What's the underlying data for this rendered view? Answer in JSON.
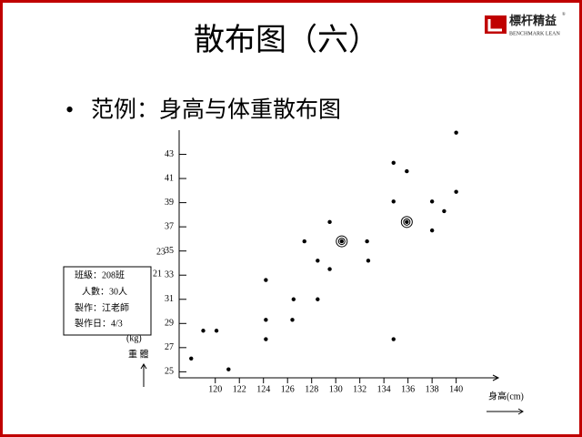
{
  "header": {
    "title": "散布图（六）",
    "logo_name": "標杆精益",
    "logo_subtitle": "BENCHMARK LEAN",
    "logo_mark": "®"
  },
  "bullet": "范例：身高与体重散布图",
  "info_box": [
    "班級：208班",
    "人數：30人",
    "製作：江老師",
    "製作日：4/3"
  ],
  "chart_data": {
    "type": "scatter",
    "x": [
      118.0,
      119.0,
      120.1,
      121.1,
      124.2,
      124.2,
      124.2,
      126.4,
      126.5,
      127.4,
      128.5,
      128.5,
      129.5,
      129.5,
      130.5,
      132.6,
      132.7,
      134.8,
      134.8,
      134.8,
      135.9,
      135.9,
      138.0,
      138.0,
      139.0,
      140.0,
      140.0
    ],
    "y": [
      26.1,
      28.4,
      28.4,
      25.2,
      32.6,
      29.3,
      27.7,
      29.3,
      31.0,
      35.8,
      34.2,
      31.0,
      33.5,
      37.4,
      35.8,
      35.8,
      34.2,
      42.3,
      39.1,
      27.7,
      41.6,
      37.4,
      39.1,
      36.7,
      38.3,
      44.8,
      39.9
    ],
    "highlighted_points": [
      14,
      21
    ],
    "color": "#000000",
    "xlim": [
      117,
      143.5
    ],
    "ylim": [
      24.5,
      45
    ],
    "xticks": [
      120,
      122,
      124,
      126,
      128,
      130,
      132,
      134,
      136,
      138,
      140
    ],
    "yticks": [
      25,
      27,
      29,
      31,
      33,
      35,
      37,
      39,
      41,
      43
    ],
    "x_label": "身高(cm)",
    "y_unit": "(kg)",
    "y_label": "重 體",
    "side_labels": [
      "23",
      "21"
    ]
  }
}
